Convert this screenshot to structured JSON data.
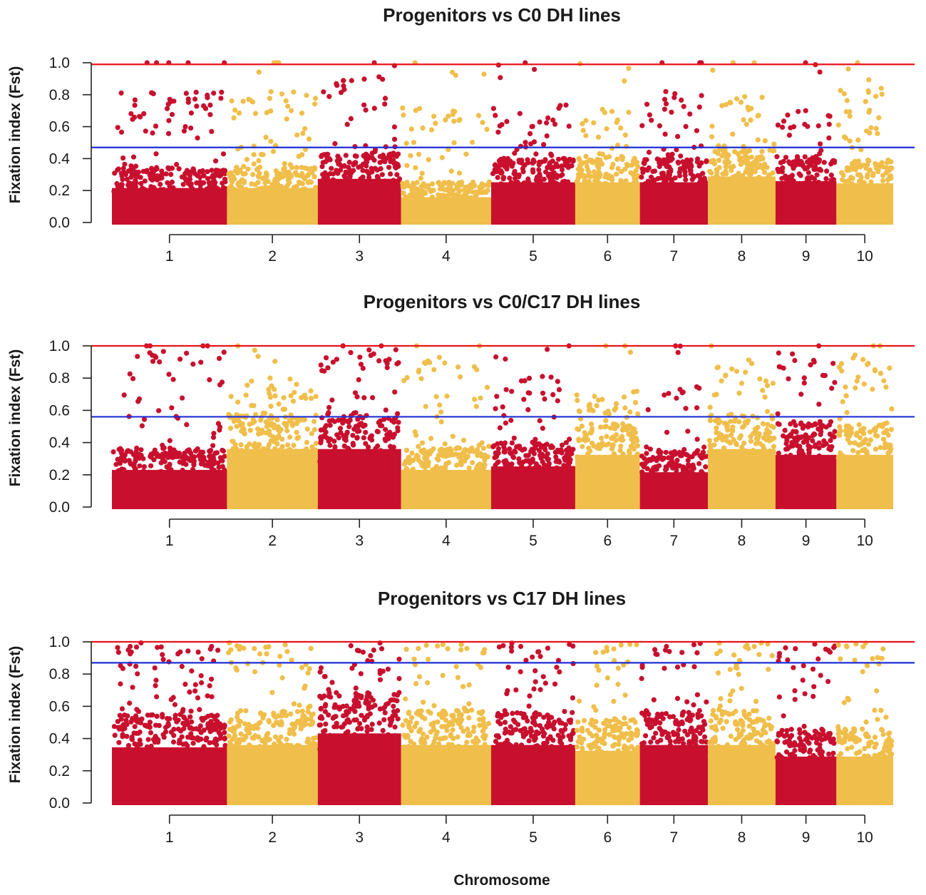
{
  "figure": {
    "xlabel": "Chromosome",
    "colors": {
      "odd": "#C8102E",
      "even": "#F0BE4A",
      "threshold_high": "#E8141C",
      "threshold_low": "#1F2FD6"
    }
  },
  "chart_data": [
    {
      "type": "scatter",
      "title": "Progenitors vs C0 DH lines",
      "ylabel": "Fixation index (Fst)",
      "xlabel": "",
      "ylim": [
        0,
        1
      ],
      "yticks": [
        "0.0",
        "0.2",
        "0.4",
        "0.6",
        "0.8",
        "1.0"
      ],
      "categories": [
        "1",
        "2",
        "3",
        "4",
        "5",
        "6",
        "7",
        "8",
        "9",
        "10"
      ],
      "chromosome_lengths": [
        308,
        243,
        223,
        241,
        225,
        173,
        182,
        181,
        163,
        152
      ],
      "threshold_high": 0.99,
      "threshold_low": 0.47,
      "bulk_top": [
        0.3,
        0.3,
        0.38,
        0.22,
        0.35,
        0.35,
        0.35,
        0.4,
        0.36,
        0.34
      ],
      "scatter_max": [
        0.82,
        0.82,
        0.93,
        0.72,
        0.75,
        0.72,
        0.82,
        0.8,
        0.72,
        0.85
      ]
    },
    {
      "type": "scatter",
      "title": "Progenitors vs C0/C17 DH lines",
      "ylabel": "Fixation index (Fst)",
      "xlabel": "",
      "ylim": [
        0,
        1
      ],
      "yticks": [
        "0.0",
        "0.2",
        "0.4",
        "0.6",
        "0.8",
        "1.0"
      ],
      "categories": [
        "1",
        "2",
        "3",
        "4",
        "5",
        "6",
        "7",
        "8",
        "9",
        "10"
      ],
      "chromosome_lengths": [
        308,
        243,
        223,
        241,
        225,
        173,
        182,
        181,
        163,
        152
      ],
      "threshold_high": 1.0,
      "threshold_low": 0.56,
      "bulk_top": [
        0.32,
        0.5,
        0.5,
        0.32,
        0.35,
        0.45,
        0.3,
        0.5,
        0.45,
        0.45
      ],
      "scatter_max": [
        0.97,
        0.82,
        0.98,
        0.9,
        0.82,
        0.72,
        0.75,
        0.88,
        0.92,
        0.95
      ]
    },
    {
      "type": "scatter",
      "title": "Progenitors vs C17 DH lines",
      "ylabel": "Fixation index (Fst)",
      "xlabel": "",
      "ylim": [
        0,
        1
      ],
      "yticks": [
        "0.0",
        "0.2",
        "0.4",
        "0.6",
        "0.8",
        "1.0"
      ],
      "categories": [
        "1",
        "2",
        "3",
        "4",
        "5",
        "6",
        "7",
        "8",
        "9",
        "10"
      ],
      "chromosome_lengths": [
        308,
        243,
        223,
        241,
        225,
        173,
        182,
        181,
        163,
        152
      ],
      "threshold_high": 1.0,
      "threshold_low": 0.87,
      "bulk_top": [
        0.48,
        0.5,
        0.6,
        0.5,
        0.5,
        0.45,
        0.5,
        0.5,
        0.4,
        0.4
      ],
      "scatter_max": [
        1.0,
        1.0,
        1.0,
        1.0,
        1.0,
        1.0,
        1.0,
        1.0,
        1.0,
        1.0
      ]
    }
  ]
}
